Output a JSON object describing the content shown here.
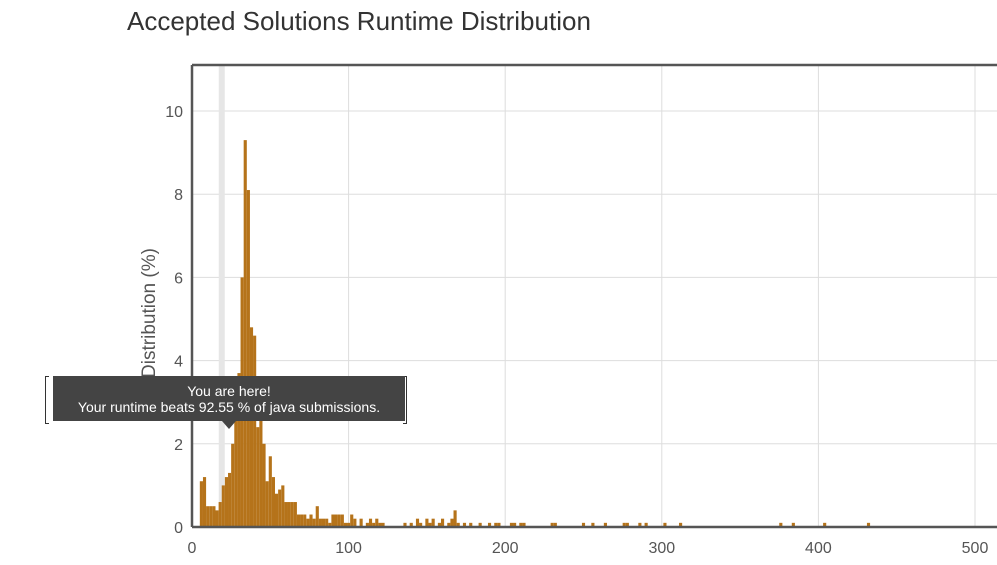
{
  "page": {
    "title": "Accepted Solutions Runtime Distribution"
  },
  "tooltip": {
    "line1": "You are here!",
    "line2": "Your runtime beats 92.55 % of java submissions."
  },
  "colors": {
    "bar": "#b5731a",
    "grid": "#dddddd",
    "axis": "#555555",
    "highlight_band": "#e6e6e6"
  },
  "chart_data": {
    "type": "bar",
    "title": "Accepted Solutions Runtime Distribution",
    "xlabel": "",
    "ylabel": "Distribution (%)",
    "xlim": [
      0,
      500
    ],
    "ylim": [
      0,
      11
    ],
    "xticks": [
      0,
      100,
      200,
      300,
      400,
      500
    ],
    "yticks": [
      0,
      2,
      4,
      6,
      8,
      10
    ],
    "grid": true,
    "highlight_x": 19,
    "bin_width": 2,
    "x": [
      6,
      8,
      10,
      12,
      14,
      16,
      18,
      20,
      22,
      24,
      26,
      28,
      30,
      32,
      34,
      36,
      38,
      40,
      42,
      44,
      46,
      48,
      50,
      52,
      54,
      56,
      58,
      60,
      62,
      64,
      66,
      68,
      70,
      72,
      74,
      76,
      78,
      80,
      82,
      84,
      86,
      88,
      90,
      92,
      94,
      96,
      98,
      100,
      102,
      104,
      108,
      112,
      114,
      116,
      118,
      120,
      122,
      136,
      140,
      144,
      146,
      150,
      152,
      154,
      158,
      160,
      164,
      166,
      168,
      170,
      174,
      178,
      184,
      190,
      194,
      196,
      204,
      206,
      210,
      212,
      230,
      232,
      250,
      256,
      264,
      276,
      278,
      286,
      290,
      302,
      312,
      376,
      384,
      404,
      432
    ],
    "values": [
      1.1,
      1.2,
      0.5,
      0.5,
      0.5,
      0.4,
      0.6,
      1.0,
      1.2,
      1.3,
      2.0,
      3.5,
      3.7,
      6.0,
      9.3,
      8.1,
      4.8,
      4.6,
      2.4,
      2.6,
      2.0,
      1.1,
      1.7,
      1.2,
      0.8,
      0.9,
      1.0,
      0.6,
      0.6,
      0.6,
      0.6,
      0.3,
      0.3,
      0.3,
      0.2,
      0.3,
      0.2,
      0.5,
      0.2,
      0.2,
      0.2,
      0.1,
      0.3,
      0.3,
      0.3,
      0.3,
      0.1,
      0.1,
      0.3,
      0.2,
      0.2,
      0.1,
      0.2,
      0.1,
      0.2,
      0.1,
      0.1,
      0.1,
      0.1,
      0.2,
      0.1,
      0.2,
      0.1,
      0.2,
      0.1,
      0.2,
      0.1,
      0.2,
      0.4,
      0.1,
      0.1,
      0.1,
      0.1,
      0.1,
      0.1,
      0.1,
      0.1,
      0.1,
      0.1,
      0.1,
      0.1,
      0.1,
      0.1,
      0.1,
      0.1,
      0.1,
      0.1,
      0.1,
      0.1,
      0.1,
      0.1,
      0.1,
      0.1,
      0.1,
      0.1
    ]
  }
}
